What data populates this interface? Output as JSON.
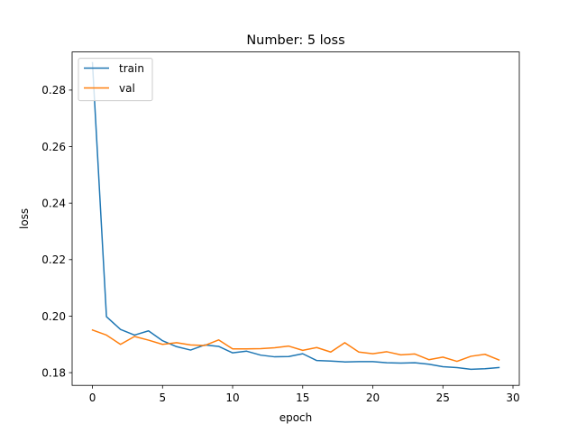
{
  "chart_data": {
    "type": "line",
    "title": "Number: 5 loss",
    "xlabel": "epoch",
    "ylabel": "loss",
    "xlim": [
      -1.45,
      30.45
    ],
    "ylim": [
      0.1755,
      0.2935
    ],
    "xticks": [
      0,
      5,
      10,
      15,
      20,
      25,
      30
    ],
    "yticks": [
      0.18,
      0.2,
      0.22,
      0.24,
      0.26,
      0.28
    ],
    "xtick_labels": [
      "0",
      "5",
      "10",
      "15",
      "20",
      "25",
      "30"
    ],
    "ytick_labels": [
      "0.18",
      "0.20",
      "0.22",
      "0.24",
      "0.26",
      "0.28"
    ],
    "grid": false,
    "legend_position": "top-left",
    "x": [
      0,
      1,
      2,
      3,
      4,
      5,
      6,
      7,
      8,
      9,
      10,
      11,
      12,
      13,
      14,
      15,
      16,
      17,
      18,
      19,
      20,
      21,
      22,
      23,
      24,
      25,
      26,
      27,
      28,
      29
    ],
    "series": [
      {
        "name": "train",
        "color": "#1f77b4",
        "values": [
          0.2897,
          0.1998,
          0.1953,
          0.1933,
          0.1948,
          0.1913,
          0.1892,
          0.188,
          0.1898,
          0.1893,
          0.187,
          0.1876,
          0.1862,
          0.1856,
          0.1857,
          0.1867,
          0.1843,
          0.1841,
          0.1838,
          0.1839,
          0.1839,
          0.1835,
          0.1834,
          0.1835,
          0.183,
          0.1821,
          0.1818,
          0.1812,
          0.1814,
          0.1818
        ]
      },
      {
        "name": "val",
        "color": "#ff7f0e",
        "values": [
          0.1951,
          0.1933,
          0.19,
          0.1928,
          0.1915,
          0.19,
          0.1906,
          0.1898,
          0.1896,
          0.1916,
          0.1884,
          0.1884,
          0.1885,
          0.1888,
          0.1894,
          0.1879,
          0.1889,
          0.1873,
          0.1906,
          0.1873,
          0.1867,
          0.1874,
          0.1863,
          0.1866,
          0.1846,
          0.1855,
          0.184,
          0.1858,
          0.1865,
          0.1845
        ]
      }
    ]
  }
}
